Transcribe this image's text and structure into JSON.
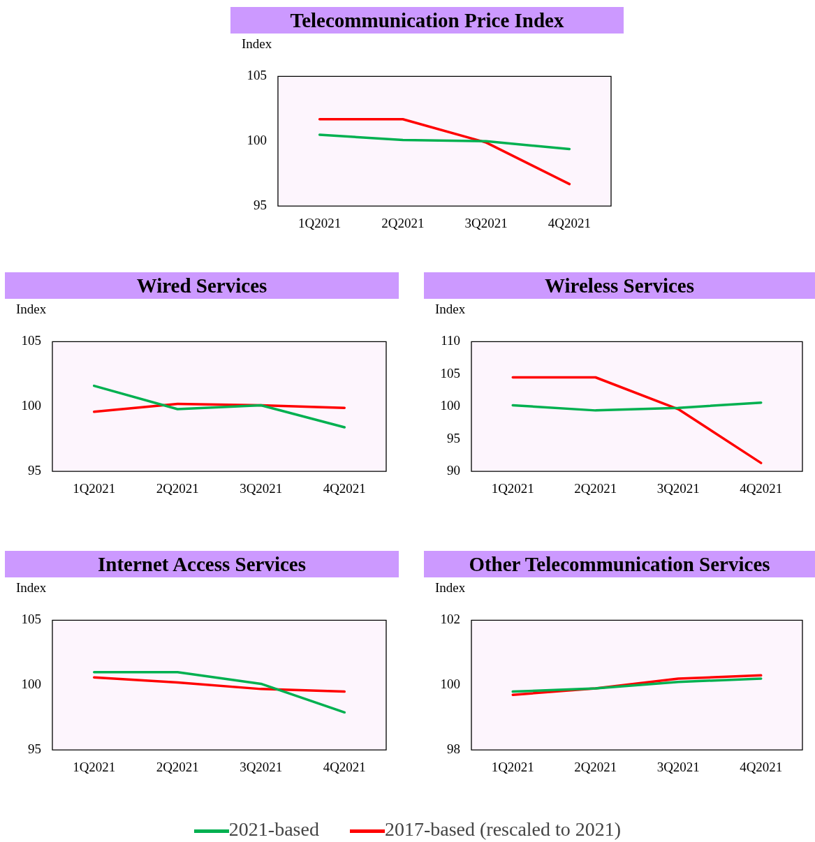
{
  "chart_data": [
    {
      "type": "line",
      "title": "Telecommunication Price Index",
      "ylabel": "Index",
      "categories": [
        "1Q2021",
        "2Q2021",
        "3Q2021",
        "4Q2021"
      ],
      "ylim": [
        95,
        105
      ],
      "yticks": [
        95,
        100,
        105
      ],
      "grid": false,
      "legend": "bottom",
      "series": [
        {
          "name": "2021-based",
          "color": "#00b050",
          "values": [
            100.5,
            100.1,
            100.0,
            99.4
          ]
        },
        {
          "name": "2017-based (rescaled to 2021)",
          "color": "#ff0000",
          "values": [
            101.7,
            101.7,
            99.9,
            96.7
          ]
        }
      ]
    },
    {
      "type": "line",
      "title": "Wired Services",
      "ylabel": "Index",
      "categories": [
        "1Q2021",
        "2Q2021",
        "3Q2021",
        "4Q2021"
      ],
      "ylim": [
        95,
        105
      ],
      "yticks": [
        95,
        100,
        105
      ],
      "grid": false,
      "series": [
        {
          "color": "#00b050",
          "values": [
            101.6,
            99.8,
            100.1,
            98.4
          ]
        },
        {
          "color": "#ff0000",
          "values": [
            99.6,
            100.2,
            100.1,
            99.9
          ]
        }
      ]
    },
    {
      "type": "line",
      "title": "Wireless Services",
      "ylabel": "Index",
      "categories": [
        "1Q2021",
        "2Q2021",
        "3Q2021",
        "4Q2021"
      ],
      "ylim": [
        90,
        110
      ],
      "yticks": [
        90,
        95,
        100,
        105,
        110
      ],
      "grid": false,
      "series": [
        {
          "color": "#00b050",
          "values": [
            100.2,
            99.4,
            99.8,
            100.6
          ]
        },
        {
          "color": "#ff0000",
          "values": [
            104.5,
            104.5,
            99.6,
            91.3
          ]
        }
      ]
    },
    {
      "type": "line",
      "title": "Internet Access Services",
      "ylabel": "Index",
      "categories": [
        "1Q2021",
        "2Q2021",
        "3Q2021",
        "4Q2021"
      ],
      "ylim": [
        95,
        105
      ],
      "yticks": [
        95,
        100,
        105
      ],
      "grid": false,
      "series": [
        {
          "color": "#00b050",
          "values": [
            101.0,
            101.0,
            100.1,
            97.9
          ]
        },
        {
          "color": "#ff0000",
          "values": [
            100.6,
            100.2,
            99.7,
            99.5
          ]
        }
      ]
    },
    {
      "type": "line",
      "title": "Other Telecommunication Services",
      "ylabel": "Index",
      "categories": [
        "1Q2021",
        "2Q2021",
        "3Q2021",
        "4Q2021"
      ],
      "ylim": [
        98,
        102
      ],
      "yticks": [
        98,
        100,
        102
      ],
      "grid": false,
      "series": [
        {
          "color": "#00b050",
          "values": [
            99.8,
            99.9,
            100.1,
            100.2
          ]
        },
        {
          "color": "#ff0000",
          "values": [
            99.7,
            99.9,
            100.2,
            100.3
          ]
        }
      ]
    }
  ]
}
